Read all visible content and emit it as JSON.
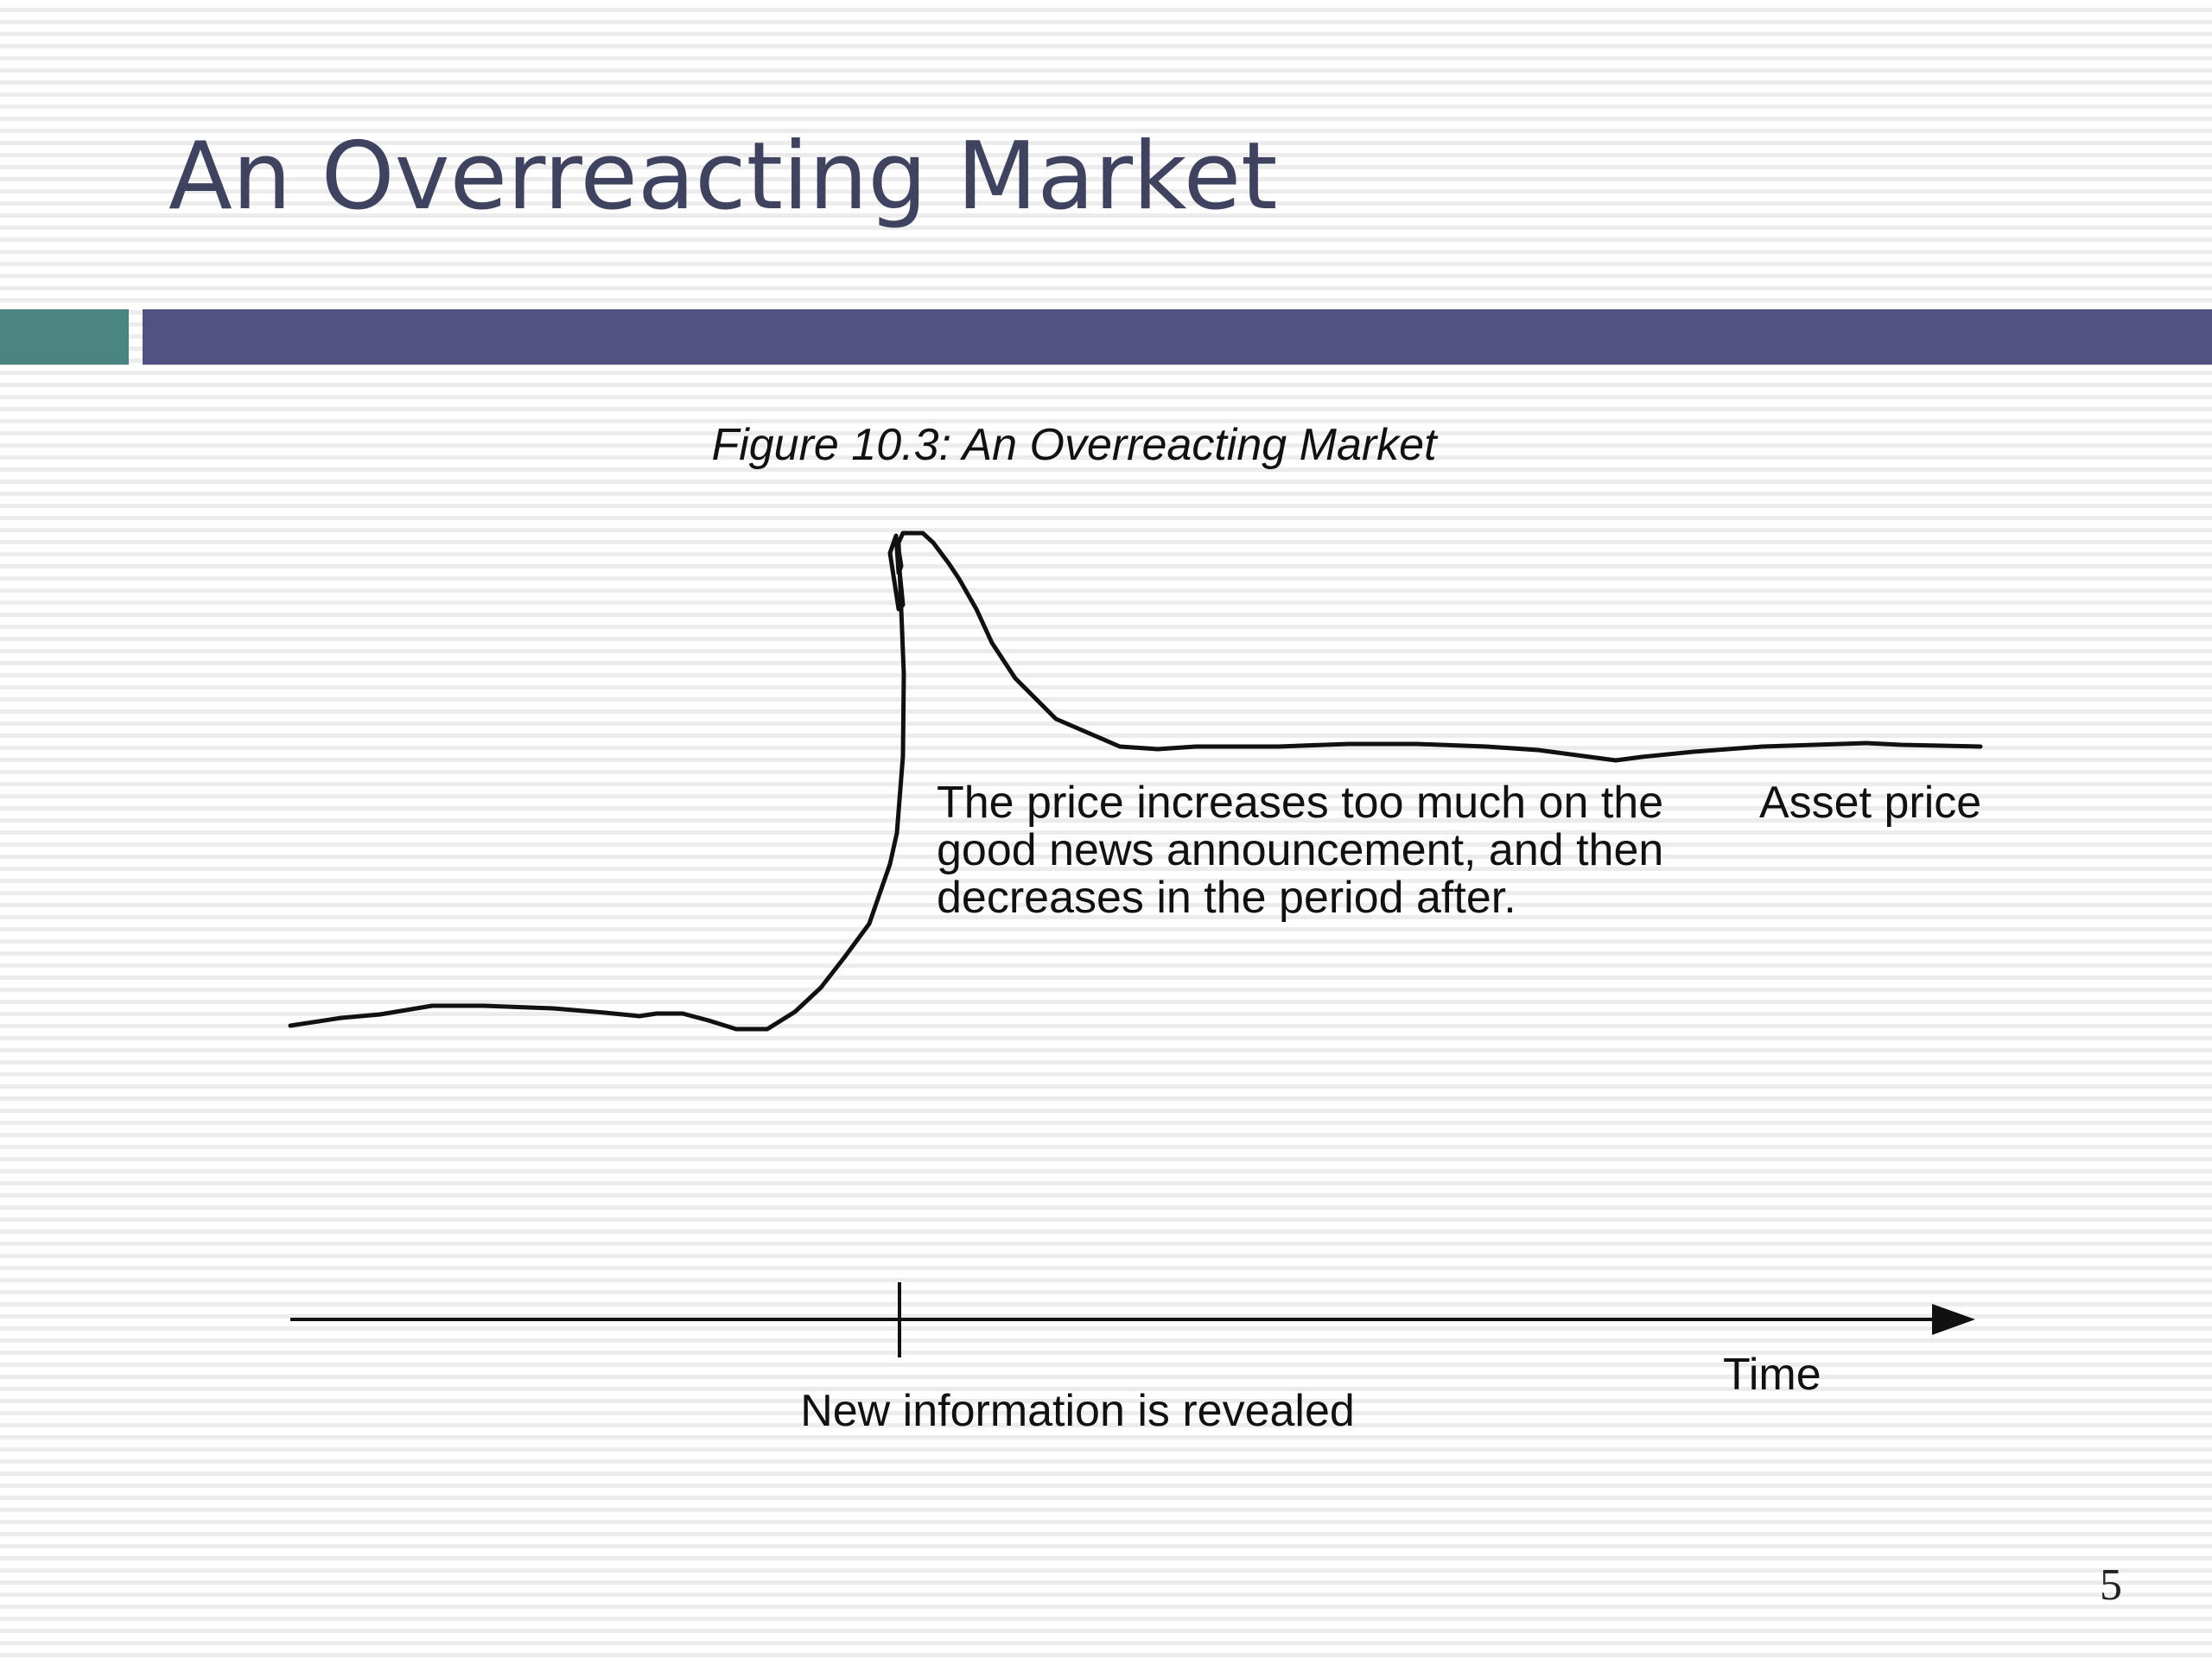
{
  "slide": {
    "title": "An Overreacting Market",
    "page_number": "5"
  },
  "figure": {
    "caption": "Figure 10.3: An Overreacting Market",
    "curve_label": "Asset price",
    "annotation_lines": [
      "The price increases too much on the",
      "good news announcement, and then",
      "decreases in the period after."
    ],
    "axis_label": "Time",
    "event_label": "New information is revealed"
  },
  "colors": {
    "title": "#3f4360",
    "accent_teal": "#4a8582",
    "accent_purple": "#535183",
    "ink": "#111111"
  }
}
